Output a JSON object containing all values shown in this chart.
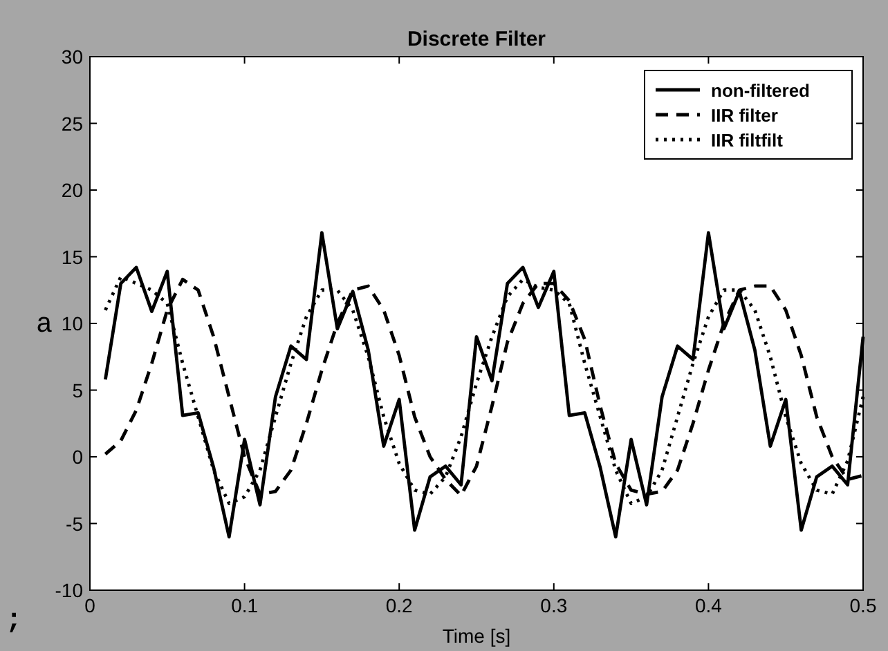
{
  "chart_data": {
    "type": "line",
    "title": "Discrete Filter",
    "xlabel": "Time [s]",
    "x": [
      0.01,
      0.02,
      0.03,
      0.04,
      0.05,
      0.06,
      0.07,
      0.08,
      0.09,
      0.1,
      0.11,
      0.12,
      0.13,
      0.14,
      0.15,
      0.16,
      0.17,
      0.18,
      0.19,
      0.2,
      0.21,
      0.22,
      0.23,
      0.24,
      0.25,
      0.26,
      0.27,
      0.28,
      0.29,
      0.3,
      0.31,
      0.32,
      0.33,
      0.34,
      0.35,
      0.36,
      0.37,
      0.38,
      0.39,
      0.4,
      0.41,
      0.42,
      0.43,
      0.44,
      0.45,
      0.46,
      0.47,
      0.48,
      0.49,
      0.5
    ],
    "series": [
      {
        "name": "non-filtered",
        "color": "#000000",
        "line_style": "solid",
        "values": [
          5.8,
          13,
          14.2,
          10.9,
          13.9,
          3.1,
          3.3,
          -0.8,
          -6,
          1.3,
          -3.6,
          4.5,
          8.3,
          7.3,
          16.8,
          9.6,
          12.4,
          8,
          0.8,
          4.3,
          -5.5,
          -1.5,
          -0.7,
          -2.1,
          9,
          5.7,
          13,
          14.2,
          11.2,
          13.9,
          3.1,
          3.3,
          -0.8,
          -6,
          1.3,
          -3.6,
          4.5,
          8.3,
          7.3,
          16.8,
          9.6,
          12.4,
          8,
          0.8,
          4.3,
          -5.5,
          -1.5,
          -0.7,
          -2.1,
          9
        ]
      },
      {
        "name": "IIR filter",
        "color": "#000000",
        "line_style": "dashed",
        "values": [
          0.2,
          1.2,
          3.5,
          7,
          11,
          13.3,
          12.5,
          9,
          4.5,
          0,
          -2.8,
          -2.6,
          -1,
          2.5,
          6.5,
          10,
          12.5,
          12.8,
          11,
          7.6,
          3,
          0,
          -1.7,
          -2.9,
          -0.7,
          3.8,
          8.6,
          11.5,
          13,
          13,
          11.7,
          8.8,
          3.8,
          -0.5,
          -2.5,
          -2.8,
          -2.6,
          -1,
          2.5,
          6.5,
          10,
          12.5,
          12.8,
          12.8,
          11,
          7.6,
          3,
          0,
          -1.7,
          -1.4
        ]
      },
      {
        "name": "IIR filtfilt",
        "color": "#000000",
        "line_style": "dotted",
        "values": [
          11,
          13.5,
          13,
          12.5,
          11.5,
          7,
          3,
          -1,
          -3.5,
          -3,
          -1,
          3,
          7,
          10.5,
          12.5,
          12.5,
          11,
          7.5,
          3,
          -0.5,
          -2.5,
          -2.8,
          -1.5,
          1.5,
          5.5,
          9,
          12,
          13.3,
          12.7,
          12.5,
          11.5,
          7,
          3,
          -1,
          -3.5,
          -3,
          -1,
          3,
          7,
          10.5,
          12.5,
          12.5,
          11,
          7.5,
          3,
          -0.5,
          -2.5,
          -2.8,
          -0.3,
          4.5
        ]
      }
    ],
    "xlim": [
      0,
      0.5
    ],
    "xticks": [
      0,
      0.1,
      0.2,
      0.3,
      0.4,
      0.5
    ],
    "ylim": [
      -10,
      30
    ],
    "yticks": [
      -10,
      -5,
      0,
      5,
      10,
      15,
      20,
      25,
      30
    ],
    "grid": false,
    "legend": "top right",
    "marker": "none",
    "annotations": [
      "a",
      ";"
    ]
  }
}
